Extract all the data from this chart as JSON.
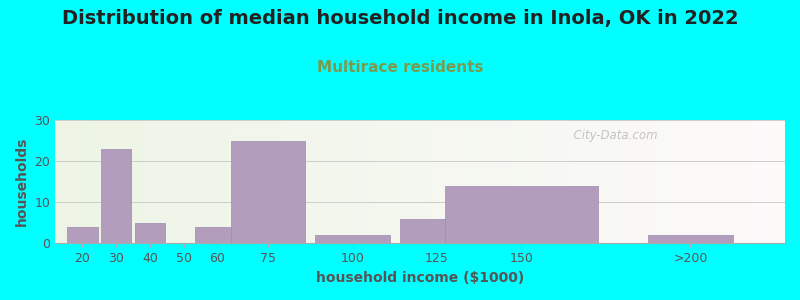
{
  "title": "Distribution of median household income in Inola, OK in 2022",
  "subtitle": "Multirace residents",
  "xlabel": "household income ($1000)",
  "ylabel": "households",
  "background_color": "#00FFFF",
  "bar_color": "#b39dbd",
  "bar_edge_color": "#9e8aae",
  "categories": [
    "20",
    "30",
    "40",
    "50",
    "60",
    "75",
    "100",
    "125",
    "150",
    ">200"
  ],
  "values": [
    4,
    23,
    5,
    0,
    4,
    25,
    2,
    6,
    14,
    2
  ],
  "x_positions": [
    20,
    30,
    40,
    50,
    60,
    75,
    100,
    125,
    150,
    200
  ],
  "bar_widths": [
    9,
    9,
    9,
    9,
    13,
    22,
    22,
    22,
    45,
    25
  ],
  "xlim": [
    12,
    228
  ],
  "ylim": [
    0,
    30
  ],
  "yticks": [
    0,
    10,
    20,
    30
  ],
  "watermark": "  City-Data.com",
  "title_fontsize": 14,
  "subtitle_fontsize": 11,
  "label_fontsize": 10,
  "tick_fontsize": 9,
  "subtitle_color": "#7a9a50",
  "title_color": "#222222",
  "label_color": "#555555",
  "tick_color": "#555555",
  "grid_color": "#cccccc",
  "spine_color": "#aaaaaa"
}
